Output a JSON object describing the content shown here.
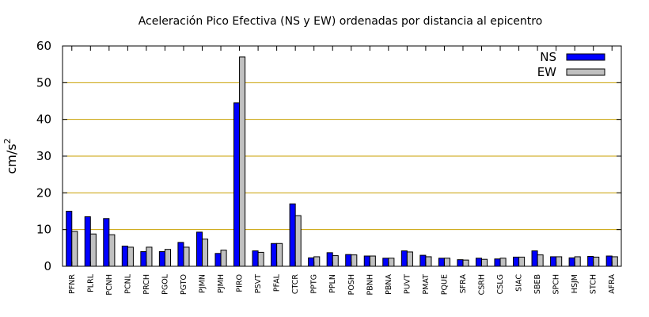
{
  "chart_data": {
    "type": "bar",
    "title": "Aceleración Pico Efectiva (NS y EW) ordenadas por distancia al epicentro",
    "xlabel": "",
    "ylabel_base": "cm/s",
    "ylabel_sup": "2",
    "ylim": [
      0,
      60
    ],
    "yticks": [
      0,
      10,
      20,
      30,
      40,
      50,
      60
    ],
    "grid": true,
    "legend_position": "top-right",
    "categories": [
      "PFNR",
      "PLRL",
      "PCNH",
      "PCNL",
      "PRCH",
      "PGOL",
      "PGTO",
      "PJMN",
      "PJMH",
      "PIRO",
      "PSVT",
      "PFAL",
      "CTCR",
      "PPTG",
      "PPLN",
      "POSH",
      "PBNH",
      "PBNA",
      "PUVT",
      "PMAT",
      "PQUE",
      "SFRA",
      "CSRH",
      "CSLG",
      "SIAC",
      "SBEB",
      "SPCH",
      "HSJM",
      "STCH",
      "AFRA"
    ],
    "series": [
      {
        "name": "NS",
        "color": "#0000ff",
        "values": [
          15,
          13.5,
          13,
          5.5,
          4,
          4,
          6.5,
          9.3,
          3.5,
          44.5,
          4.2,
          6.2,
          17,
          2.3,
          3.7,
          3.2,
          2.8,
          2.2,
          4.2,
          3,
          2.2,
          1.8,
          2.2,
          2,
          2.5,
          4.2,
          2.6,
          2.3,
          2.7,
          2.8
        ]
      },
      {
        "name": "EW",
        "color": "#c0c0c0",
        "values": [
          9.5,
          8.8,
          8.6,
          5.2,
          5.2,
          4.6,
          5.2,
          7.4,
          4.4,
          57,
          3.8,
          6.2,
          13.8,
          2.6,
          2.9,
          3.1,
          2.8,
          2.2,
          3.9,
          2.6,
          2.2,
          1.7,
          1.9,
          2.2,
          2.5,
          3.1,
          2.6,
          2.6,
          2.5,
          2.6
        ]
      }
    ]
  }
}
